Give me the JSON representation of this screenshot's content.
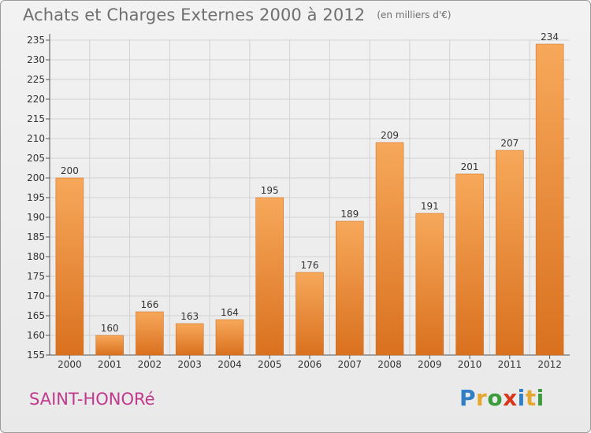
{
  "title": "Achats et Charges Externes 2000 à 2012",
  "subtitle": "(en milliers d'€)",
  "commune": "SAINT-HONORé",
  "logo": {
    "text": "Proxiti",
    "colors": [
      "#2f7fc7",
      "#e6a72f",
      "#3a9c3a",
      "#d8371b",
      "#2f7fc7",
      "#e6a72f",
      "#3a9c3a"
    ]
  },
  "chart_data": {
    "type": "bar",
    "categories": [
      "2000",
      "2001",
      "2002",
      "2003",
      "2004",
      "2005",
      "2006",
      "2007",
      "2008",
      "2009",
      "2010",
      "2011",
      "2012"
    ],
    "values": [
      200,
      160,
      166,
      163,
      164,
      195,
      176,
      189,
      209,
      191,
      201,
      207,
      234
    ],
    "ylim": [
      155,
      235
    ],
    "yticks": [
      155,
      160,
      165,
      170,
      175,
      180,
      185,
      190,
      195,
      200,
      205,
      210,
      215,
      220,
      225,
      230,
      235
    ],
    "grid": true,
    "bar_color_top": "#f7a85a",
    "bar_color_bottom": "#d9711f"
  }
}
